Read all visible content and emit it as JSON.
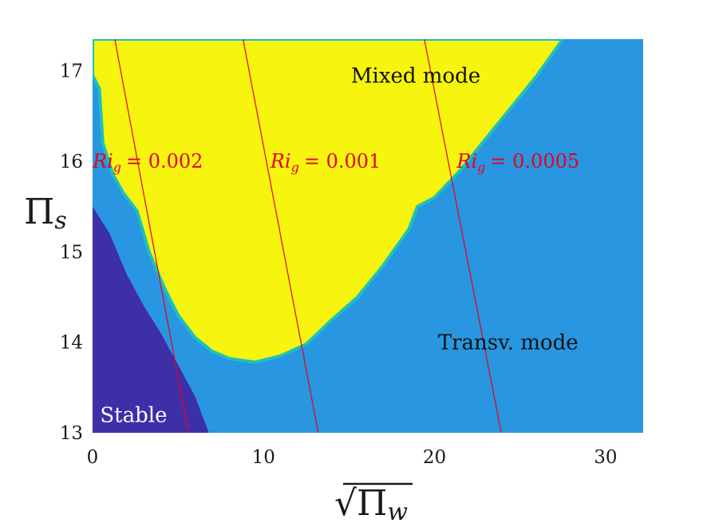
{
  "chart_data": {
    "type": "heatmap",
    "title": "",
    "xlabel": "√Π_w",
    "ylabel": "Π_s",
    "xlabel_parts": {
      "root": "√",
      "symbol": "Π",
      "sub": "w"
    },
    "ylabel_parts": {
      "symbol": "Π",
      "sub": "s"
    },
    "xlim": [
      0,
      32.2
    ],
    "ylim": [
      13,
      17.35
    ],
    "xticks": [
      0,
      10,
      20,
      30
    ],
    "yticks": [
      13,
      14,
      15,
      16,
      17
    ],
    "colors": {
      "stable": "#3d2fa8",
      "transverse": "#2896e0",
      "mixed": "#f7f410",
      "transition": "#1ec2b8",
      "ri_line": "#e8001c"
    },
    "regions": [
      {
        "name": "stable",
        "label": "Stable",
        "label_at": [
          2.4,
          13.2
        ],
        "label_color": "#ffffff"
      },
      {
        "name": "transverse",
        "label": "Transv. mode",
        "label_at": [
          24.3,
          14.0
        ],
        "label_color": "#111111"
      },
      {
        "name": "mixed",
        "label": "Mixed mode",
        "label_at": [
          18.9,
          16.95
        ],
        "label_color": "#111111"
      }
    ],
    "stable_boundary": [
      [
        0,
        15.5
      ],
      [
        1.0,
        15.2
      ],
      [
        2.0,
        14.75
      ],
      [
        3.0,
        14.4
      ],
      [
        4.0,
        14.1
      ],
      [
        5.0,
        13.75
      ],
      [
        6.0,
        13.4
      ],
      [
        6.8,
        13.0
      ]
    ],
    "mixed_boundary": [
      [
        0,
        16.95
      ],
      [
        0.4,
        16.8
      ],
      [
        0.5,
        16.5
      ],
      [
        0.6,
        16.2
      ],
      [
        1.2,
        15.85
      ],
      [
        1.8,
        15.65
      ],
      [
        2.6,
        15.45
      ],
      [
        3.3,
        15.0
      ],
      [
        4.2,
        14.6
      ],
      [
        5.0,
        14.3
      ],
      [
        6.0,
        14.05
      ],
      [
        7.0,
        13.9
      ],
      [
        8.0,
        13.82
      ],
      [
        9.5,
        13.78
      ],
      [
        11.0,
        13.85
      ],
      [
        12.5,
        13.98
      ],
      [
        14.0,
        14.25
      ],
      [
        15.5,
        14.5
      ],
      [
        17.0,
        14.85
      ],
      [
        18.5,
        15.25
      ],
      [
        19.0,
        15.5
      ],
      [
        20.0,
        15.6
      ],
      [
        21.5,
        15.9
      ],
      [
        23.0,
        16.25
      ],
      [
        24.5,
        16.6
      ],
      [
        26.0,
        16.95
      ],
      [
        27.5,
        17.35
      ]
    ],
    "ri_lines": [
      {
        "name": "Ri_g = 0.002",
        "label_prefix": "Ri",
        "label_sub": "g",
        "label_value": "= 0.002",
        "points": [
          [
            1.3,
            17.35
          ],
          [
            5.6,
            13.0
          ]
        ],
        "label_at": [
          0,
          16.0
        ]
      },
      {
        "name": "Ri_g = 0.001",
        "label_prefix": "Ri",
        "label_sub": "g",
        "label_value": "= 0.001",
        "points": [
          [
            8.8,
            17.35
          ],
          [
            13.2,
            13.0
          ]
        ],
        "label_at": [
          10.4,
          16.0
        ]
      },
      {
        "name": "Ri_g = 0.0005",
        "label_prefix": "Ri",
        "label_sub": "g",
        "label_value": "= 0.0005",
        "points": [
          [
            19.4,
            17.35
          ],
          [
            23.9,
            13.0
          ]
        ],
        "label_at": [
          21.3,
          16.0
        ]
      }
    ],
    "grid": false,
    "legend": "none"
  }
}
